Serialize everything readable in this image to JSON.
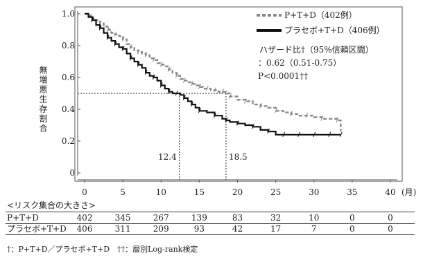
{
  "chart_data": {
    "type": "line",
    "subtype": "kaplan-meier",
    "ylabel": "無増悪生存割合",
    "x_unit_label": "(月)",
    "xlim": [
      0,
      40
    ],
    "ylim": [
      0,
      1.0
    ],
    "xticks": [
      "0",
      "5",
      "10",
      "15",
      "20",
      "25",
      "30",
      "35",
      "40"
    ],
    "yticks": [
      "0",
      "0.2",
      "0.4",
      "0.6",
      "0.8",
      "1.0"
    ],
    "series": [
      {
        "name": "P+T+D（402例）",
        "style": "dashed",
        "color": "#888888",
        "x": [
          0,
          0.5,
          1,
          1.5,
          2,
          2.5,
          3,
          3.5,
          4,
          4.5,
          5,
          5.5,
          6,
          6.5,
          7,
          7.5,
          8,
          8.5,
          9,
          9.5,
          10,
          10.5,
          11,
          11.5,
          12,
          12.5,
          13,
          13.5,
          14,
          14.5,
          15,
          15.5,
          16,
          16.5,
          17,
          17.5,
          18,
          18.5,
          19,
          20,
          21,
          22,
          23,
          24,
          25,
          26,
          27,
          28,
          29,
          30,
          31,
          32,
          33,
          33.5
        ],
        "y": [
          1.0,
          0.99,
          0.97,
          0.96,
          0.94,
          0.92,
          0.9,
          0.88,
          0.87,
          0.86,
          0.84,
          0.81,
          0.79,
          0.77,
          0.76,
          0.75,
          0.74,
          0.72,
          0.71,
          0.69,
          0.68,
          0.67,
          0.65,
          0.63,
          0.61,
          0.59,
          0.58,
          0.57,
          0.56,
          0.55,
          0.54,
          0.53,
          0.53,
          0.52,
          0.52,
          0.51,
          0.51,
          0.5,
          0.48,
          0.46,
          0.45,
          0.43,
          0.42,
          0.41,
          0.39,
          0.38,
          0.37,
          0.36,
          0.36,
          0.35,
          0.34,
          0.34,
          0.33,
          0.26
        ]
      },
      {
        "name": "プラセボ+T+D（406例）",
        "style": "solid",
        "color": "#111111",
        "x": [
          0,
          0.5,
          1,
          1.5,
          2,
          2.5,
          3,
          3.5,
          4,
          4.5,
          5,
          5.5,
          6,
          6.5,
          7,
          7.5,
          8,
          8.5,
          9,
          9.5,
          10,
          10.5,
          11,
          11.5,
          12,
          12.5,
          13,
          13.5,
          14,
          14.5,
          15,
          16,
          17,
          18,
          18.5,
          19,
          20,
          21,
          22,
          23,
          24,
          25,
          26,
          27,
          28,
          29,
          30,
          31,
          32,
          33,
          33.5
        ],
        "y": [
          1.0,
          0.98,
          0.96,
          0.93,
          0.91,
          0.88,
          0.85,
          0.83,
          0.81,
          0.79,
          0.78,
          0.75,
          0.72,
          0.7,
          0.68,
          0.66,
          0.63,
          0.61,
          0.6,
          0.58,
          0.55,
          0.53,
          0.51,
          0.5,
          0.5,
          0.49,
          0.47,
          0.45,
          0.43,
          0.41,
          0.39,
          0.38,
          0.36,
          0.34,
          0.33,
          0.32,
          0.31,
          0.3,
          0.29,
          0.27,
          0.26,
          0.24,
          0.24,
          0.24,
          0.24,
          0.24,
          0.24,
          0.24,
          0.24,
          0.24,
          0.24
        ]
      }
    ],
    "median_lines": [
      {
        "label": "12.4",
        "x": 12.4,
        "y": 0.5
      },
      {
        "label": "18.5",
        "x": 18.5,
        "y": 0.5
      }
    ],
    "annotation_lines": [
      "ハザード比†（95%信頼区間）",
      "：0.62（0.51-0.75）",
      "P<0.0001††"
    ],
    "risk_table": {
      "title": "<リスク集合の大きさ>",
      "timepoints": [
        0,
        5,
        10,
        15,
        20,
        25,
        30,
        35,
        40
      ],
      "rows": [
        {
          "label": "P+T+D",
          "values": [
            "402",
            "345",
            "267",
            "139",
            "83",
            "32",
            "10",
            "0",
            "0"
          ]
        },
        {
          "label": "プラセボ+T+D",
          "values": [
            "406",
            "311",
            "209",
            "93",
            "42",
            "17",
            "7",
            "0",
            "0"
          ]
        }
      ]
    },
    "footnote": "†：P+T+D／プラセボ+T+D　††：層別Log-rank検定"
  }
}
